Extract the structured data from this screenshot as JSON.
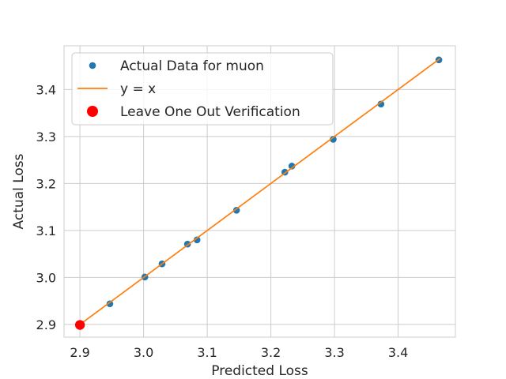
{
  "chart_data": {
    "type": "scatter",
    "title": "",
    "xlabel": "Predicted Loss",
    "ylabel": "Actual Loss",
    "xlim": [
      2.875,
      3.49
    ],
    "ylim": [
      2.873,
      3.493
    ],
    "xticks": [
      2.9,
      3.0,
      3.1,
      3.2,
      3.3,
      3.4
    ],
    "yticks": [
      2.9,
      3.0,
      3.1,
      3.2,
      3.3,
      3.4
    ],
    "xtick_labels": [
      "2.9",
      "3.0",
      "3.1",
      "3.2",
      "3.3",
      "3.4"
    ],
    "ytick_labels": [
      "2.9",
      "3.0",
      "3.1",
      "3.2",
      "3.3",
      "3.4"
    ],
    "grid": true,
    "legend_position": "upper-left",
    "series": [
      {
        "name": "Actual Data for muon",
        "kind": "scatter",
        "color": "#1f77b4",
        "points": [
          {
            "x": 2.9,
            "y": 2.899
          },
          {
            "x": 2.947,
            "y": 2.944
          },
          {
            "x": 3.002,
            "y": 3.001
          },
          {
            "x": 3.029,
            "y": 3.029
          },
          {
            "x": 3.069,
            "y": 3.071
          },
          {
            "x": 3.084,
            "y": 3.08
          },
          {
            "x": 3.146,
            "y": 3.143
          },
          {
            "x": 3.222,
            "y": 3.224
          },
          {
            "x": 3.233,
            "y": 3.237
          },
          {
            "x": 3.298,
            "y": 3.294
          },
          {
            "x": 3.373,
            "y": 3.369
          },
          {
            "x": 3.464,
            "y": 3.463
          }
        ]
      },
      {
        "name": "y = x",
        "kind": "line",
        "color": "#ff7f0e",
        "points": [
          {
            "x": 2.9,
            "y": 2.9
          },
          {
            "x": 3.466,
            "y": 3.466
          }
        ]
      },
      {
        "name": "Leave One Out Verification",
        "kind": "scatter",
        "color": "#ff0000",
        "points": [
          {
            "x": 2.9,
            "y": 2.899
          }
        ]
      }
    ]
  }
}
